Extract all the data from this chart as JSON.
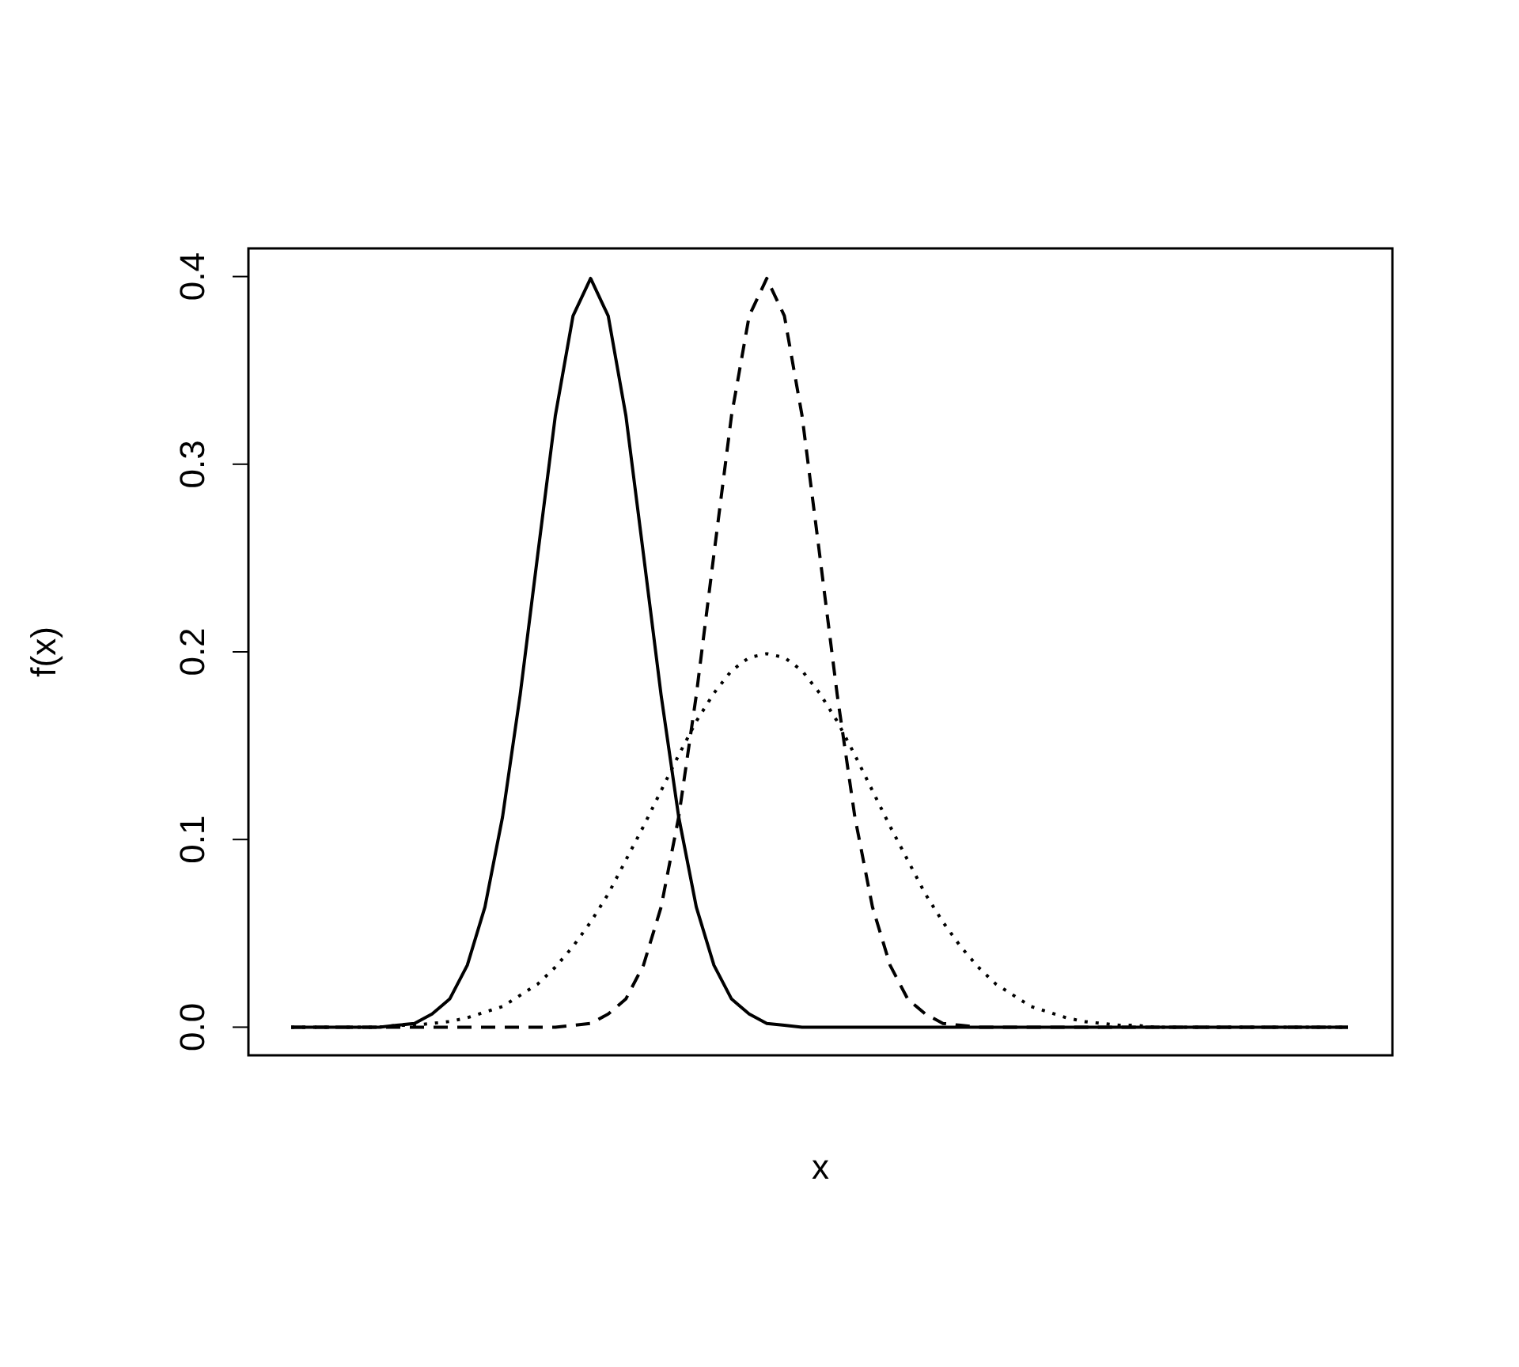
{
  "chart_data": {
    "type": "line",
    "xlabel": "x",
    "ylabel": "f(x)",
    "categories": [
      null,
      null,
      null,
      null,
      null,
      null,
      null,
      null,
      null,
      null,
      null,
      null,
      null,
      null,
      null,
      null,
      null,
      null,
      null,
      null,
      null,
      null,
      null,
      null,
      null,
      null,
      null,
      null,
      null,
      null,
      null,
      null,
      null,
      null,
      null,
      null,
      null,
      null,
      null,
      null,
      null,
      null,
      null,
      null,
      null,
      null,
      null,
      null,
      null,
      null,
      null,
      null,
      null,
      null,
      null,
      null,
      null,
      null,
      null,
      null,
      null
    ],
    "series": [
      {
        "color": "#000000",
        "line_style": "solid",
        "values": [
          0,
          0,
          0,
          0,
          0,
          0,
          0.001,
          0.002,
          0.007,
          0.015,
          0.033,
          0.064,
          0.112,
          0.177,
          0.252,
          0.326,
          0.379,
          0.399,
          0.379,
          0.326,
          0.252,
          0.177,
          0.112,
          0.064,
          0.033,
          0.015,
          0.007,
          0.002,
          0.001,
          0,
          0,
          0,
          0,
          0,
          0,
          0,
          0,
          0,
          0,
          0,
          0,
          0,
          0,
          0,
          0,
          0,
          0,
          0,
          0,
          0,
          0,
          0,
          0,
          0,
          0,
          0,
          0,
          0,
          0,
          0,
          0
        ]
      },
      {
        "color": "#000000",
        "line_style": "dashed",
        "values": [
          0,
          0,
          0,
          0,
          0,
          0,
          0,
          0,
          0,
          0,
          0,
          0,
          0,
          0,
          0,
          0,
          0.001,
          0.002,
          0.007,
          0.015,
          0.033,
          0.064,
          0.112,
          0.177,
          0.252,
          0.326,
          0.379,
          0.399,
          0.379,
          0.326,
          0.252,
          0.177,
          0.112,
          0.064,
          0.033,
          0.015,
          0.007,
          0.002,
          0.001,
          0,
          0,
          0,
          0,
          0,
          0,
          0,
          0,
          0,
          0,
          0,
          0,
          0,
          0,
          0,
          0,
          0,
          0,
          0,
          0,
          0,
          0
        ]
      },
      {
        "color": "#000000",
        "line_style": "dotted",
        "values": [
          0,
          0,
          0,
          0,
          0,
          0,
          0.001,
          0.001,
          0.002,
          0.003,
          0.005,
          0.008,
          0.011,
          0.017,
          0.023,
          0.032,
          0.043,
          0.056,
          0.071,
          0.089,
          0.107,
          0.126,
          0.145,
          0.163,
          0.178,
          0.19,
          0.197,
          0.199,
          0.197,
          0.19,
          0.178,
          0.163,
          0.145,
          0.126,
          0.107,
          0.089,
          0.071,
          0.056,
          0.043,
          0.032,
          0.023,
          0.017,
          0.011,
          0.008,
          0.005,
          0.003,
          0.002,
          0.001,
          0.001,
          0,
          0,
          0,
          0,
          0,
          0,
          0,
          0,
          0,
          0,
          0,
          0
        ]
      }
    ],
    "ylim": [
      -0.015,
      0.415
    ],
    "yticks": [
      {
        "value": 0,
        "label": "0.0"
      },
      0.1,
      0.2,
      0.3,
      0.4
    ],
    "grid": false
  }
}
